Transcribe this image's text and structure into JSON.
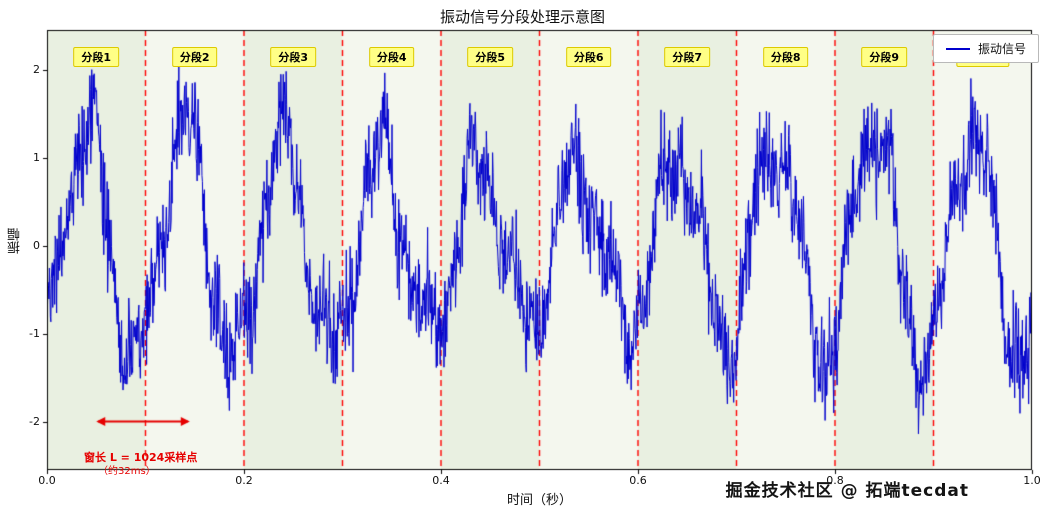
{
  "chart_data": {
    "type": "line",
    "title": "振动信号分段处理示意图",
    "xlabel": "时间（秒）",
    "ylabel": "振幅",
    "xlim": [
      0.0,
      1.0
    ],
    "ylim": [
      -2.55,
      2.45
    ],
    "x_ticks": [
      {
        "value": 0.0,
        "label": "0.0"
      },
      {
        "value": 0.2,
        "label": "0.2"
      },
      {
        "value": 0.4,
        "label": "0.4"
      },
      {
        "value": 0.6,
        "label": "0.6"
      },
      {
        "value": 0.8,
        "label": "0.8"
      },
      {
        "value": 1.0,
        "label": "1.0"
      }
    ],
    "y_ticks": [
      {
        "value": 2,
        "label": "2"
      },
      {
        "value": 1,
        "label": "1"
      },
      {
        "value": 0,
        "label": "0"
      },
      {
        "value": -1,
        "label": "-1"
      },
      {
        "value": -2,
        "label": "-2"
      }
    ],
    "legend": {
      "label": "振动信号",
      "line_color": "#0000cd"
    },
    "segments": {
      "count": 10,
      "labels": [
        "分段1",
        "分段2",
        "分段3",
        "分段4",
        "分段5",
        "分段6",
        "分段7",
        "分段8",
        "分段9",
        "分段10"
      ],
      "boundaries": [
        0.1,
        0.2,
        0.3,
        0.4,
        0.5,
        0.6,
        0.7,
        0.8,
        0.9
      ],
      "band_colors": [
        "#e9f0e1",
        "#f4f7ee"
      ],
      "divider_color": "#ff0000"
    },
    "signal_model": {
      "description": "noisy periodic vibration signal, ~10 cycles over 1 s, amplitude about +2.1 to -2.1",
      "color": "#0000cd",
      "n_points": 2048,
      "seed": 42,
      "base_freq_hz": 10,
      "base_amp": 1.1,
      "amp_mod_freq_hz": 1.3,
      "amp_mod_depth": 0.22,
      "harmonics": [
        {
          "freq_hz": 21,
          "amp": 0.28,
          "phase": 1.2
        },
        {
          "freq_hz": 47,
          "amp": 0.18,
          "phase": 0.3
        }
      ],
      "noise_amp": 0.45
    },
    "annotation": {
      "text_line1": "窗长 L = 1024采样点",
      "text_line2": "（约32ms）",
      "arrow_x_start": 0.05,
      "arrow_x_end": 0.145,
      "arrow_y": -2.0,
      "color": "#e60000"
    }
  },
  "watermark": "掘金技术社区 @ 拓端tecdat"
}
